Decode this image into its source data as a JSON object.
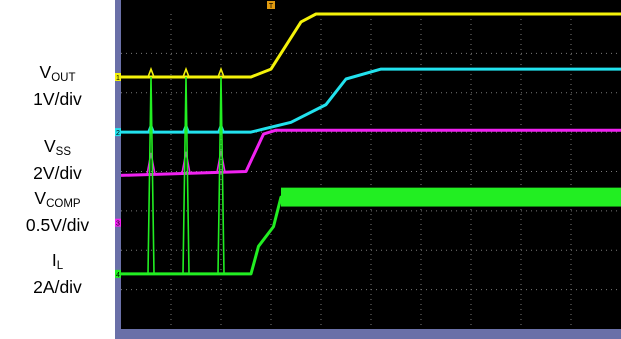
{
  "labels": {
    "vout": {
      "main": "V",
      "sub": "OUT",
      "scale": "1V/div"
    },
    "vss": {
      "main": "V",
      "sub": "SS",
      "scale": "2V/div"
    },
    "vcomp": {
      "main": "V",
      "sub": "COMP",
      "scale": "0.5V/div"
    },
    "il": {
      "main": "I",
      "sub": "L",
      "scale": "2A/div"
    }
  },
  "markers": {
    "trigger": "T",
    "ch1": "1",
    "ch2": "2",
    "ch3": "3",
    "ch4": "4"
  },
  "colors": {
    "background": "#000000",
    "panel": "#6a70a8",
    "grid": "#7a7a7a",
    "vout": "#f4f20a",
    "vss": "#22e2ee",
    "vcomp": "#f022f0",
    "il": "#22ee22"
  },
  "chart_data": {
    "type": "line",
    "title": "",
    "xlabel": "",
    "ylabel": "",
    "grid": true,
    "xlim": [
      0,
      10
    ],
    "ylim": [
      -4,
      4
    ],
    "series": [
      {
        "name": "VOUT",
        "color": "#f4f20a",
        "points": [
          [
            0,
            2.4
          ],
          [
            2.6,
            2.4
          ],
          [
            3.0,
            2.6
          ],
          [
            3.6,
            3.8
          ],
          [
            3.9,
            4.0
          ],
          [
            10,
            4.0
          ]
        ],
        "spikes_at": [
          0.6,
          1.3,
          2.0
        ]
      },
      {
        "name": "VSS",
        "color": "#22e2ee",
        "points": [
          [
            0,
            1.0
          ],
          [
            2.6,
            1.0
          ],
          [
            3.4,
            1.25
          ],
          [
            4.1,
            1.7
          ],
          [
            4.5,
            2.35
          ],
          [
            5.2,
            2.6
          ],
          [
            10,
            2.6
          ]
        ],
        "spikes_at": [
          0.6,
          1.3,
          2.0
        ]
      },
      {
        "name": "VCOMP",
        "color": "#f022f0",
        "points": [
          [
            0,
            -0.1
          ],
          [
            2.5,
            0
          ],
          [
            2.85,
            0.95
          ],
          [
            3.1,
            1.05
          ],
          [
            10,
            1.05
          ]
        ],
        "spikes_at": [
          0.6,
          1.3,
          2.0
        ]
      },
      {
        "name": "IL",
        "color": "#22ee22",
        "points": [
          [
            0,
            -2.6
          ],
          [
            2.6,
            -2.6
          ],
          [
            2.75,
            -1.9
          ],
          [
            3.05,
            -1.4
          ],
          [
            3.2,
            -0.65
          ],
          [
            10,
            -0.65
          ]
        ],
        "spikes_at": [
          0.6,
          1.3,
          2.0
        ],
        "ripple_from": 3.2,
        "ripple_amp": 0.24
      }
    ]
  }
}
